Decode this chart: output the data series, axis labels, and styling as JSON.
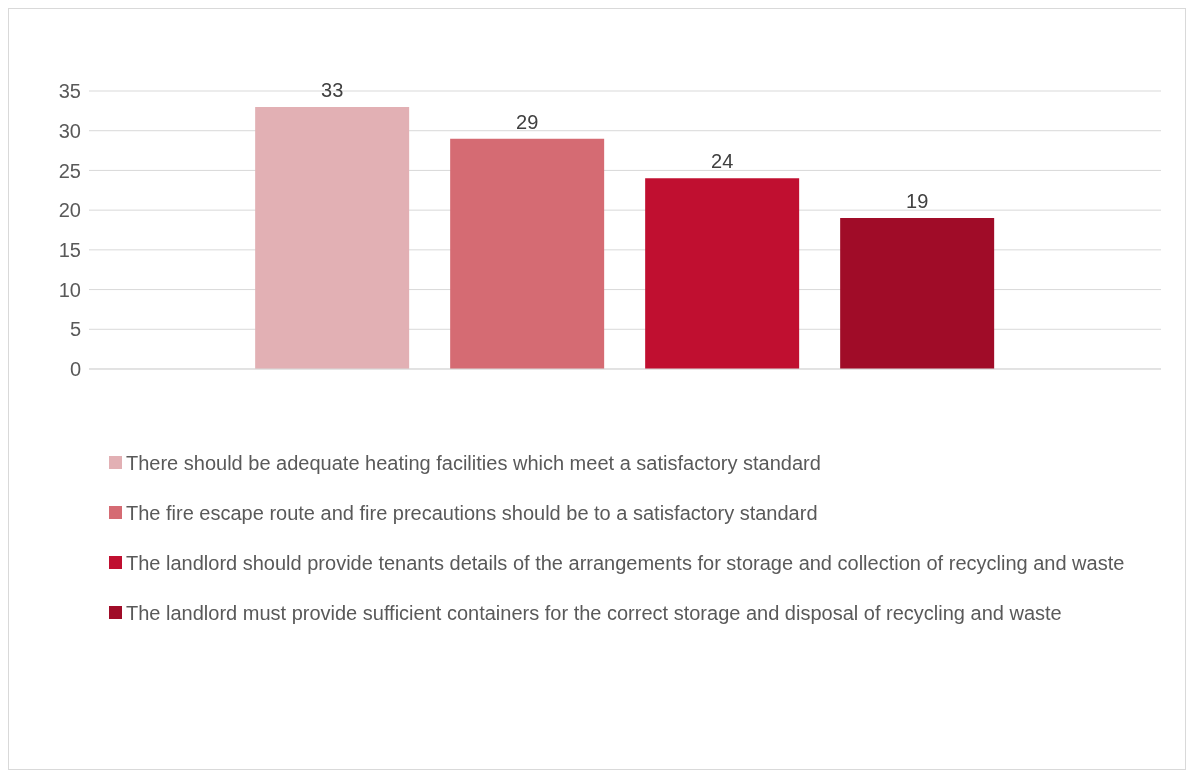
{
  "chart_data": {
    "type": "bar",
    "categories": [
      null
    ],
    "series": [
      {
        "name": "There should be adequate heating facilities which meet a satisfactory standard",
        "color": "#e2b0b4",
        "values": [
          33
        ]
      },
      {
        "name": "The fire escape route and fire precautions should be to a satisfactory standard",
        "color": "#d56b73",
        "values": [
          29
        ]
      },
      {
        "name": "The landlord should provide tenants details of the arrangements for storage and collection of recycling and waste",
        "color": "#c00f30",
        "values": [
          24
        ]
      },
      {
        "name": "The landlord must provide sufficient containers for the correct storage and disposal of recycling and waste",
        "color": "#a00c28",
        "values": [
          19
        ]
      }
    ],
    "ylim": [
      0,
      35
    ],
    "yticks": [
      0,
      5,
      10,
      15,
      20,
      25,
      30,
      35
    ],
    "grid": "y",
    "legend": "bottom",
    "data_labels": true
  }
}
